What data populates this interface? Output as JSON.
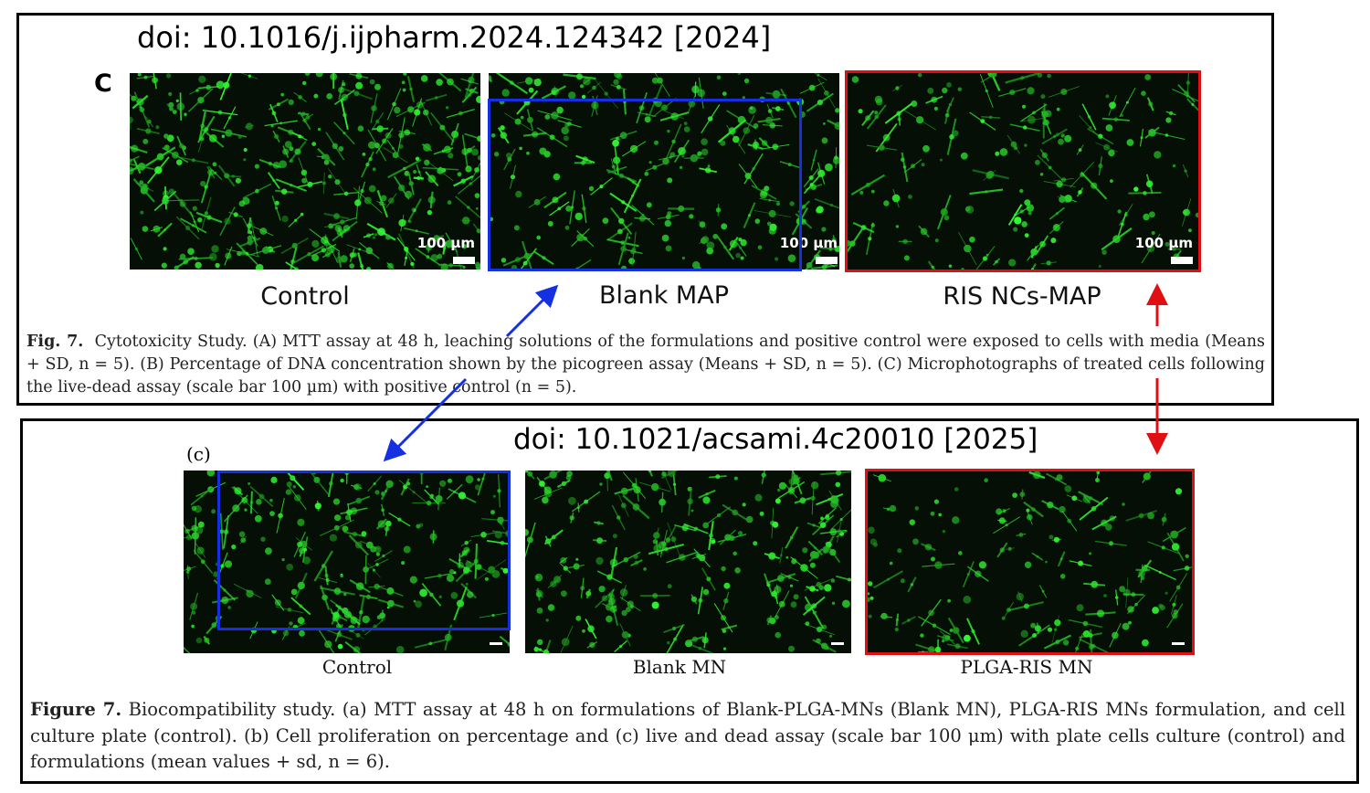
{
  "top": {
    "doi": "doi: 10.1016/j.ijpharm.2024.124342 [2024]",
    "panel_letter": "C",
    "scale_label": "100 µm",
    "images": [
      {
        "label": "Control",
        "density": 1.0
      },
      {
        "label": "Blank MAP",
        "density": 0.75
      },
      {
        "label": "RIS NCs-MAP",
        "density": 0.55
      }
    ],
    "caption": {
      "prefix": "Fig. 7.",
      "text": "Cytotoxicity Study. (A) MTT assay at 48 h, leaching solutions of the formulations and positive control were exposed to cells with media (Means + SD, n = 5). (B) Percentage of DNA concentration shown by the picogreen assay (Means + SD, n = 5). (C) Microphotographs of treated cells following the live-dead assay (scale bar 100 µm) with positive control (n = 5)."
    }
  },
  "bottom": {
    "doi": "doi: 10.1021/acsami.4c20010 [2025]",
    "panel_letter": "(c)",
    "images": [
      {
        "label": "Control",
        "density": 0.8
      },
      {
        "label": "Blank MN",
        "density": 0.8
      },
      {
        "label": "PLGA-RIS MN",
        "density": 0.55
      }
    ],
    "caption": {
      "prefix": "Figure 7.",
      "text": "Biocompatibility study. (a) MTT assay at 48 h on formulations of Blank-PLGA-MNs (Blank MN), PLGA-RIS MNs formulation, and cell culture plate (control). (b) Cell proliferation on percentage and (c) live and dead assay (scale bar 100 μm) with plate cells culture (control) and formulations (mean values + sd, n = 6)."
    }
  },
  "colors": {
    "highlight_blue": "#1530e0",
    "highlight_red": "#e00f14",
    "cell_green": "#3fd23f",
    "background_dark": "#050f05"
  }
}
